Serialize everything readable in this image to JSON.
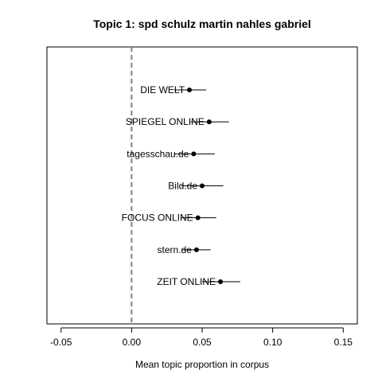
{
  "chart_data": {
    "type": "scatter",
    "title": "Topic 1: spd schulz martin nahles gabriel",
    "xlabel": "Mean topic proportion in corpus",
    "ylabel": "",
    "xlim": [
      -0.06,
      0.16
    ],
    "xticks": [
      -0.05,
      0.0,
      0.05,
      0.1,
      0.15
    ],
    "xtick_labels": [
      "-0.05",
      "0.00",
      "0.05",
      "0.10",
      "0.15"
    ],
    "reference_line": {
      "x": 0.0,
      "style": "dashed",
      "color": "#808080"
    },
    "grid": false,
    "points": [
      {
        "label": "DIE WELT",
        "estimate": 0.041,
        "lower": 0.03,
        "upper": 0.053
      },
      {
        "label": "SPIEGEL ONLINE",
        "estimate": 0.055,
        "lower": 0.042,
        "upper": 0.069
      },
      {
        "label": "tagesschau.de",
        "estimate": 0.044,
        "lower": 0.03,
        "upper": 0.059
      },
      {
        "label": "Bild.de",
        "estimate": 0.05,
        "lower": 0.035,
        "upper": 0.065
      },
      {
        "label": "FOCUS ONLINE",
        "estimate": 0.047,
        "lower": 0.035,
        "upper": 0.06
      },
      {
        "label": "stern.de",
        "estimate": 0.046,
        "lower": 0.036,
        "upper": 0.056
      },
      {
        "label": "ZEIT ONLINE",
        "estimate": 0.063,
        "lower": 0.05,
        "upper": 0.077
      }
    ],
    "colors": {
      "points": "#000000",
      "intervals": "#000000"
    }
  }
}
